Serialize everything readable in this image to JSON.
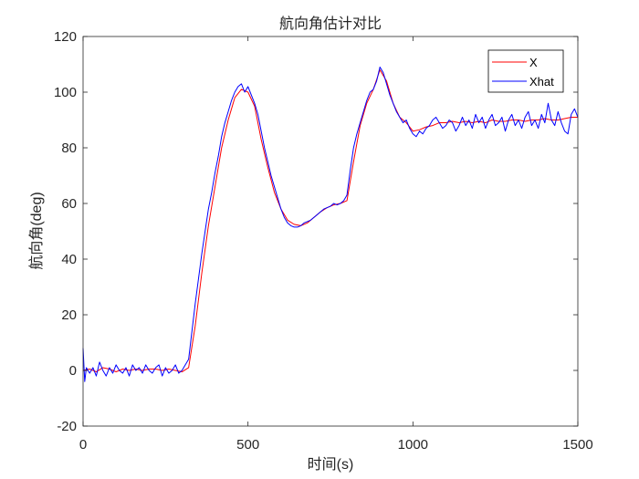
{
  "chart_data": {
    "type": "line",
    "title": "航向角估计对比",
    "xlabel": "时间(s)",
    "ylabel": "航向角(deg)",
    "xlim": [
      0,
      1500
    ],
    "ylim": [
      -20,
      120
    ],
    "xticks": [
      0,
      500,
      1000,
      1500
    ],
    "yticks": [
      -20,
      0,
      20,
      40,
      60,
      80,
      100,
      120
    ],
    "grid": false,
    "legend_position": "top-right",
    "series": [
      {
        "name": "X",
        "color": "#ff0000",
        "x": [
          0,
          20,
          40,
          60,
          80,
          100,
          120,
          140,
          160,
          180,
          200,
          220,
          240,
          260,
          280,
          300,
          320,
          340,
          360,
          380,
          400,
          420,
          440,
          460,
          480,
          500,
          520,
          540,
          560,
          580,
          600,
          620,
          640,
          660,
          680,
          700,
          720,
          740,
          760,
          780,
          800,
          820,
          840,
          860,
          880,
          900,
          920,
          940,
          960,
          980,
          1000,
          1020,
          1040,
          1060,
          1080,
          1100,
          1120,
          1140,
          1160,
          1180,
          1200,
          1220,
          1240,
          1260,
          1280,
          1300,
          1320,
          1340,
          1360,
          1380,
          1400,
          1420,
          1440,
          1460,
          1480,
          1500
        ],
        "values": [
          0,
          0.5,
          -0.5,
          1,
          0.5,
          -0.5,
          0.5,
          0,
          0.5,
          0,
          0.5,
          0.5,
          0,
          0.5,
          0,
          -0.5,
          1,
          16,
          35,
          52,
          66,
          80,
          90,
          98,
          101,
          100,
          95,
          83,
          73,
          64,
          58,
          54,
          52.5,
          52,
          53,
          55,
          57,
          58.5,
          59.5,
          60,
          61,
          75,
          88,
          96,
          101,
          108,
          104,
          96,
          91,
          89,
          86,
          86.5,
          87.5,
          88,
          89,
          89,
          89.5,
          89,
          89.5,
          89,
          89.5,
          89,
          90,
          89.5,
          89.5,
          90,
          90,
          89.5,
          90,
          90,
          90.5,
          90,
          90,
          90.5,
          91,
          91
        ]
      },
      {
        "name": "Xhat",
        "color": "#0000ff",
        "x": [
          0,
          5,
          10,
          20,
          30,
          40,
          50,
          60,
          70,
          80,
          90,
          100,
          110,
          120,
          130,
          140,
          150,
          160,
          170,
          180,
          190,
          200,
          210,
          220,
          230,
          240,
          250,
          260,
          270,
          280,
          290,
          300,
          310,
          320,
          330,
          340,
          350,
          360,
          370,
          380,
          390,
          400,
          410,
          420,
          430,
          440,
          450,
          460,
          470,
          480,
          490,
          500,
          510,
          520,
          530,
          540,
          550,
          560,
          570,
          580,
          590,
          600,
          610,
          620,
          630,
          640,
          650,
          660,
          670,
          680,
          690,
          700,
          710,
          720,
          730,
          740,
          750,
          760,
          770,
          780,
          790,
          800,
          810,
          820,
          830,
          840,
          850,
          860,
          870,
          880,
          890,
          900,
          910,
          920,
          930,
          940,
          950,
          960,
          970,
          980,
          990,
          1000,
          1010,
          1020,
          1030,
          1040,
          1050,
          1060,
          1070,
          1080,
          1090,
          1100,
          1110,
          1120,
          1130,
          1140,
          1150,
          1160,
          1170,
          1180,
          1190,
          1200,
          1210,
          1220,
          1230,
          1240,
          1250,
          1260,
          1270,
          1280,
          1290,
          1300,
          1310,
          1320,
          1330,
          1340,
          1350,
          1360,
          1370,
          1380,
          1390,
          1400,
          1410,
          1420,
          1430,
          1440,
          1450,
          1460,
          1470,
          1480,
          1490,
          1500
        ],
        "values": [
          8,
          -4,
          1,
          -1,
          1,
          -2,
          3,
          0,
          -2,
          1,
          -1,
          2,
          0,
          -1,
          1,
          -2,
          2,
          0,
          1,
          -1,
          2,
          0,
          -1,
          1,
          2,
          -2,
          1,
          -1,
          0,
          2,
          -1,
          0,
          2,
          4,
          14,
          24,
          33,
          42,
          50,
          58,
          64,
          71,
          77,
          84,
          89,
          93,
          97,
          100,
          102,
          103,
          100,
          102,
          99,
          96,
          92,
          86,
          80,
          75,
          70,
          66,
          62,
          58,
          55,
          53,
          52,
          51.5,
          51.5,
          52,
          53,
          53.5,
          54,
          55,
          56,
          57,
          58,
          58.5,
          59,
          60,
          59.5,
          60,
          61,
          63,
          72,
          80,
          85,
          89,
          93,
          97,
          100,
          101,
          104,
          109,
          107,
          103,
          99,
          96,
          93,
          91,
          89,
          90,
          87,
          85,
          84,
          86,
          85,
          87,
          88,
          90,
          91,
          89,
          87,
          88,
          90,
          89,
          86,
          88,
          91,
          88,
          90,
          87,
          92,
          89,
          91,
          87,
          90,
          92,
          88,
          89,
          91,
          86,
          90,
          92,
          88,
          90,
          87,
          91,
          93,
          88,
          90,
          87,
          92,
          89,
          96,
          90,
          88,
          93,
          89,
          86,
          85,
          92,
          94,
          91
        ]
      }
    ]
  }
}
